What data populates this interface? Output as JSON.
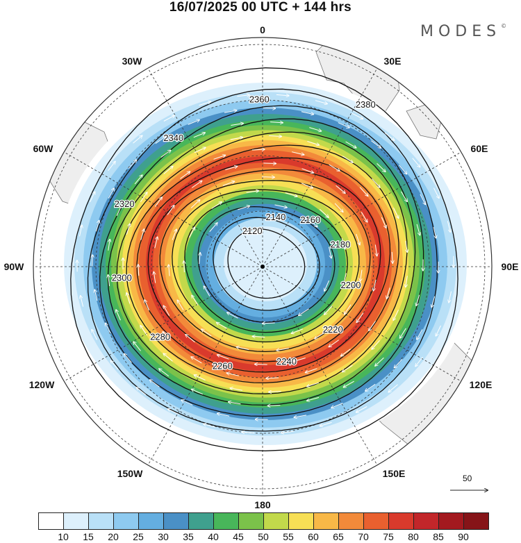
{
  "title": "16/07/2025  00 UTC  + 144 hrs",
  "logo": "MODES",
  "logo_mark": "©",
  "longitude_labels": [
    {
      "key": "lon0",
      "text": "0"
    },
    {
      "key": "lon30E",
      "text": "30E"
    },
    {
      "key": "lon60E",
      "text": "60E"
    },
    {
      "key": "lon90E",
      "text": "90E"
    },
    {
      "key": "lon120E",
      "text": "120E"
    },
    {
      "key": "lon150E",
      "text": "150E"
    },
    {
      "key": "lon180",
      "text": "180"
    },
    {
      "key": "lon150W",
      "text": "150W"
    },
    {
      "key": "lon120W",
      "text": "120W"
    },
    {
      "key": "lon90W",
      "text": "90W"
    },
    {
      "key": "lon60W",
      "text": "60W"
    },
    {
      "key": "lon30W",
      "text": "30W"
    }
  ],
  "contour_labels": [
    "2120",
    "2140",
    "2160",
    "2180",
    "2200",
    "2220",
    "2240",
    "2260",
    "2280",
    "2300",
    "2320",
    "2340",
    "2360",
    "2380"
  ],
  "wind_reference": {
    "value": "50"
  },
  "colorbar": {
    "labels": [
      "10",
      "15",
      "20",
      "25",
      "30",
      "35",
      "40",
      "45",
      "50",
      "55",
      "60",
      "65",
      "70",
      "75",
      "80",
      "85",
      "90"
    ],
    "colors": [
      "#ffffff",
      "#ddf0fc",
      "#b9e0f7",
      "#8ecaf0",
      "#64aee0",
      "#4a90c6",
      "#3fa08e",
      "#48b65a",
      "#7bc24a",
      "#c2d94b",
      "#f7df55",
      "#f8b847",
      "#f28a3a",
      "#e9602f",
      "#d93a2c",
      "#c2262a",
      "#a3191f",
      "#861418"
    ]
  },
  "map_style": {
    "land": "#eeeeee",
    "coast": "#777777",
    "projection": "south-polar-stereographic"
  }
}
